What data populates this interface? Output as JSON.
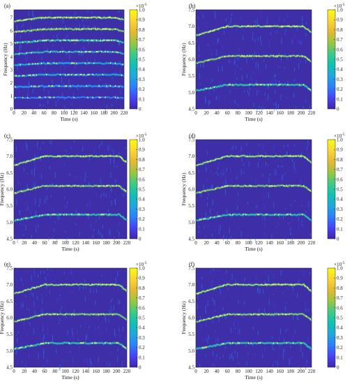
{
  "figure": {
    "colorbar": {
      "ticks": [
        "0",
        "0.1",
        "0.2",
        "0.3",
        "0.4",
        "0.5",
        "0.6",
        "0.7",
        "0.8",
        "0.9",
        "1.0"
      ],
      "exponent": "×10",
      "exponent_power": "-5",
      "stops": [
        "#3e26a8",
        "#4743f8",
        "#2c7ffd",
        "#1fa8e0",
        "#0fc1b6",
        "#3dca84",
        "#9ac640",
        "#e5b931",
        "#fcd534",
        "#f9fb0e"
      ]
    },
    "background_color": "#3e2fa8"
  },
  "chart_data": [
    {
      "type": "heatmap",
      "panel_label": "(a)",
      "xlabel": "Time (s)",
      "ylabel": "Frequency (Hz)",
      "x_ticks": [
        0,
        20,
        40,
        60,
        80,
        100,
        120,
        140,
        160,
        180,
        200,
        220
      ],
      "y_ticks": [
        0,
        1,
        2,
        3,
        4,
        5,
        6,
        7
      ],
      "xlim": [
        0,
        220
      ],
      "ylim": [
        0,
        7.6
      ],
      "ridges": [
        {
          "harmonic": 8,
          "points": [
            [
              0,
              6.72
            ],
            [
              60,
              7.0
            ],
            [
              200,
              7.0
            ],
            [
              220,
              6.85
            ]
          ],
          "intensity": 0.9
        },
        {
          "harmonic": 7,
          "points": [
            [
              0,
              5.88
            ],
            [
              60,
              6.12
            ],
            [
              200,
              6.12
            ],
            [
              220,
              5.95
            ]
          ],
          "intensity": 0.75
        },
        {
          "harmonic": 6,
          "points": [
            [
              0,
              5.05
            ],
            [
              60,
              5.25
            ],
            [
              200,
              5.25
            ],
            [
              220,
              5.1
            ]
          ],
          "intensity": 0.6
        },
        {
          "harmonic": 5,
          "points": [
            [
              0,
              4.2
            ],
            [
              60,
              4.38
            ],
            [
              200,
              4.38
            ],
            [
              220,
              4.25
            ]
          ],
          "intensity": 0.5
        },
        {
          "harmonic": 4,
          "points": [
            [
              0,
              3.36
            ],
            [
              60,
              3.5
            ],
            [
              200,
              3.5
            ],
            [
              220,
              3.4
            ]
          ],
          "intensity": 0.45
        },
        {
          "harmonic": 3,
          "points": [
            [
              0,
              2.52
            ],
            [
              60,
              2.62
            ],
            [
              200,
              2.62
            ],
            [
              220,
              2.55
            ]
          ],
          "intensity": 0.4
        },
        {
          "harmonic": 2,
          "points": [
            [
              0,
              1.68
            ],
            [
              60,
              1.75
            ],
            [
              200,
              1.75
            ],
            [
              220,
              1.7
            ]
          ],
          "intensity": 0.35
        },
        {
          "harmonic": 1,
          "points": [
            [
              0,
              0.84
            ],
            [
              60,
              0.88
            ],
            [
              200,
              0.88
            ],
            [
              220,
              0.85
            ]
          ],
          "intensity": 0.3
        }
      ]
    },
    {
      "type": "heatmap",
      "panel_label": "(b)",
      "xlabel": "Time (s)",
      "ylabel": "Frequency (Hz)",
      "x_ticks": [
        0,
        20,
        40,
        60,
        80,
        100,
        120,
        140,
        160,
        180,
        200,
        220
      ],
      "y_ticks": [
        4.5,
        5.0,
        5.5,
        6.0,
        6.5,
        7.0,
        7.5
      ],
      "xlim": [
        0,
        220
      ],
      "ylim": [
        4.5,
        7.5
      ],
      "ridges": [
        {
          "points": [
            [
              0,
              6.72
            ],
            [
              60,
              7.0
            ],
            [
              205,
              7.0
            ],
            [
              220,
              6.8
            ]
          ],
          "intensity": 0.9
        },
        {
          "points": [
            [
              0,
              5.88
            ],
            [
              60,
              6.1
            ],
            [
              205,
              6.1
            ],
            [
              220,
              5.92
            ]
          ],
          "intensity": 0.75
        },
        {
          "points": [
            [
              0,
              5.05
            ],
            [
              60,
              5.23
            ],
            [
              205,
              5.23
            ],
            [
              220,
              5.05
            ]
          ],
          "intensity": 0.6
        }
      ]
    },
    {
      "type": "heatmap",
      "panel_label": "(c)",
      "xlabel": "Time (s)",
      "ylabel": "Frequency (Hz)",
      "x_ticks": [
        0,
        20,
        40,
        60,
        80,
        100,
        120,
        140,
        160,
        180,
        200,
        220
      ],
      "y_ticks": [
        4.5,
        5.0,
        5.5,
        6.0,
        6.5,
        7.0,
        7.5
      ],
      "xlim": [
        0,
        220
      ],
      "ylim": [
        4.5,
        7.5
      ],
      "ridges": [
        {
          "points": [
            [
              0,
              6.72
            ],
            [
              60,
              7.0
            ],
            [
              205,
              7.0
            ],
            [
              220,
              6.8
            ]
          ],
          "intensity": 0.9
        },
        {
          "points": [
            [
              0,
              5.88
            ],
            [
              60,
              6.1
            ],
            [
              205,
              6.1
            ],
            [
              220,
              5.92
            ]
          ],
          "intensity": 0.75
        },
        {
          "points": [
            [
              0,
              5.05
            ],
            [
              60,
              5.23
            ],
            [
              205,
              5.23
            ],
            [
              220,
              5.05
            ]
          ],
          "intensity": 0.6
        }
      ]
    },
    {
      "type": "heatmap",
      "panel_label": "(d)",
      "xlabel": "Time (s)",
      "ylabel": "Frequency (Hz)",
      "x_ticks": [
        0,
        20,
        40,
        60,
        80,
        100,
        120,
        140,
        160,
        180,
        200,
        220
      ],
      "y_ticks": [
        4.5,
        5.0,
        5.5,
        6.0,
        6.5,
        7.0,
        7.5
      ],
      "xlim": [
        0,
        220
      ],
      "ylim": [
        4.5,
        7.5
      ],
      "ridges": [
        {
          "points": [
            [
              0,
              6.72
            ],
            [
              60,
              7.0
            ],
            [
              205,
              7.0
            ],
            [
              220,
              6.8
            ]
          ],
          "intensity": 0.9
        },
        {
          "points": [
            [
              0,
              5.88
            ],
            [
              60,
              6.1
            ],
            [
              205,
              6.1
            ],
            [
              220,
              5.92
            ]
          ],
          "intensity": 0.75
        },
        {
          "points": [
            [
              0,
              5.05
            ],
            [
              60,
              5.23
            ],
            [
              205,
              5.23
            ],
            [
              220,
              5.05
            ]
          ],
          "intensity": 0.6
        }
      ]
    },
    {
      "type": "heatmap",
      "panel_label": "(e)",
      "xlabel": "Time (s)",
      "ylabel": "Frequency (Hz)",
      "x_ticks": [
        0,
        20,
        40,
        60,
        80,
        100,
        120,
        140,
        160,
        180,
        200,
        220
      ],
      "y_ticks": [
        4.5,
        5.0,
        5.5,
        6.0,
        6.5,
        7.0,
        7.5
      ],
      "xlim": [
        0,
        220
      ],
      "ylim": [
        4.5,
        7.5
      ],
      "ridges": [
        {
          "points": [
            [
              0,
              6.72
            ],
            [
              60,
              7.0
            ],
            [
              205,
              7.0
            ],
            [
              220,
              6.8
            ]
          ],
          "intensity": 0.9
        },
        {
          "points": [
            [
              0,
              5.88
            ],
            [
              60,
              6.1
            ],
            [
              205,
              6.1
            ],
            [
              220,
              5.92
            ]
          ],
          "intensity": 0.75
        },
        {
          "points": [
            [
              0,
              5.05
            ],
            [
              60,
              5.23
            ],
            [
              205,
              5.23
            ],
            [
              220,
              5.05
            ]
          ],
          "intensity": 0.6
        }
      ]
    },
    {
      "type": "heatmap",
      "panel_label": "(f)",
      "xlabel": "Time (s)",
      "ylabel": "Frequency (Hz)",
      "x_ticks": [
        0,
        20,
        40,
        60,
        80,
        100,
        120,
        140,
        160,
        180,
        200,
        220
      ],
      "y_ticks": [
        4.5,
        5.0,
        5.5,
        6.0,
        6.5,
        7.0,
        7.5
      ],
      "xlim": [
        0,
        220
      ],
      "ylim": [
        4.5,
        7.5
      ],
      "ridges": [
        {
          "points": [
            [
              0,
              6.72
            ],
            [
              60,
              7.0
            ],
            [
              205,
              7.0
            ],
            [
              220,
              6.8
            ]
          ],
          "intensity": 0.9
        },
        {
          "points": [
            [
              0,
              5.88
            ],
            [
              60,
              6.1
            ],
            [
              205,
              6.1
            ],
            [
              220,
              5.92
            ]
          ],
          "intensity": 0.75
        },
        {
          "points": [
            [
              0,
              5.05
            ],
            [
              60,
              5.23
            ],
            [
              205,
              5.23
            ],
            [
              220,
              5.05
            ]
          ],
          "intensity": 0.6
        }
      ]
    }
  ]
}
